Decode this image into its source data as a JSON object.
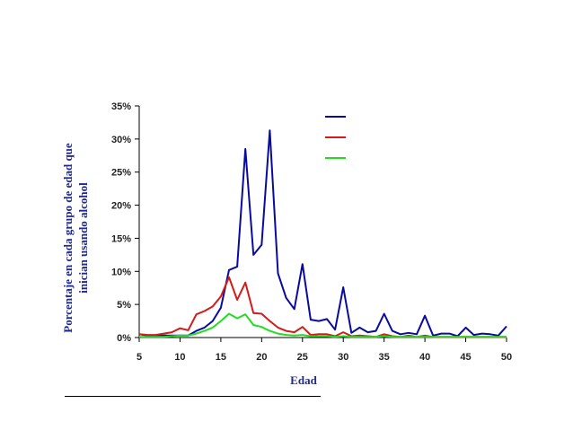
{
  "chart_data": {
    "type": "line",
    "xlabel": "Edad",
    "ylabel_lines": [
      "Porcentaje en cada grupo de edad que",
      "inician usando alcohol"
    ],
    "xlim": [
      5,
      50
    ],
    "ylim": [
      0,
      0.35
    ],
    "x_ticks": [
      5,
      10,
      15,
      20,
      25,
      30,
      35,
      40,
      45,
      50
    ],
    "y_ticks": [
      0,
      0.05,
      0.1,
      0.15,
      0.2,
      0.25,
      0.3,
      0.35
    ],
    "x_tick_labels": [
      "5",
      "10",
      "15",
      "20",
      "25",
      "30",
      "35",
      "40",
      "45",
      "50"
    ],
    "y_tick_labels": [
      "0%",
      "5%",
      "10%",
      "15%",
      "20%",
      "25%",
      "30%",
      "35%"
    ],
    "grid": false,
    "legend": "top-right",
    "x": [
      5,
      6,
      7,
      8,
      9,
      10,
      11,
      12,
      13,
      14,
      15,
      16,
      17,
      18,
      19,
      20,
      21,
      22,
      23,
      24,
      25,
      26,
      27,
      28,
      29,
      30,
      31,
      32,
      33,
      34,
      35,
      36,
      37,
      38,
      39,
      40,
      41,
      42,
      43,
      44,
      45,
      46,
      47,
      48,
      49,
      50
    ],
    "series": [
      {
        "color": "#0a0aa0",
        "values": [
          0.005,
          0.003,
          0.003,
          0.003,
          0.003,
          0.003,
          0.003,
          0.01,
          0.015,
          0.025,
          0.045,
          0.102,
          0.107,
          0.285,
          0.125,
          0.14,
          0.313,
          0.097,
          0.06,
          0.043,
          0.111,
          0.027,
          0.025,
          0.028,
          0.012,
          0.076,
          0.007,
          0.015,
          0.008,
          0.01,
          0.036,
          0.01,
          0.005,
          0.007,
          0.005,
          0.033,
          0.003,
          0.006,
          0.006,
          0.002,
          0.015,
          0.004,
          0.006,
          0.005,
          0.003,
          0.017
        ]
      },
      {
        "color": "#d41a1a",
        "values": [
          0.005,
          0.004,
          0.004,
          0.006,
          0.008,
          0.014,
          0.011,
          0.035,
          0.04,
          0.047,
          0.062,
          0.091,
          0.057,
          0.083,
          0.037,
          0.036,
          0.025,
          0.015,
          0.01,
          0.008,
          0.016,
          0.004,
          0.005,
          0.005,
          0.002,
          0.008,
          0.002,
          0.003,
          0.002,
          0.001,
          0.005,
          0.002,
          0.001,
          0.003,
          0.001,
          0.003,
          0.001,
          0.001,
          0.001,
          0.001,
          0.001,
          0.001,
          0.001,
          0.001,
          0.001,
          0.001
        ]
      },
      {
        "color": "#22dd22",
        "values": [
          0.001,
          0.001,
          0.001,
          0.001,
          0.002,
          0.003,
          0.003,
          0.006,
          0.01,
          0.015,
          0.025,
          0.036,
          0.029,
          0.035,
          0.019,
          0.016,
          0.01,
          0.006,
          0.004,
          0.003,
          0.004,
          0.002,
          0.002,
          0.002,
          0.001,
          0.002,
          0.001,
          0.001,
          0.001,
          0.001,
          0.002,
          0.001,
          0.001,
          0.001,
          0.001,
          0.001,
          0.001,
          0.001,
          0.001,
          0.001,
          0.001,
          0.001,
          0.001,
          0.001,
          0.001,
          0.001
        ]
      }
    ]
  }
}
